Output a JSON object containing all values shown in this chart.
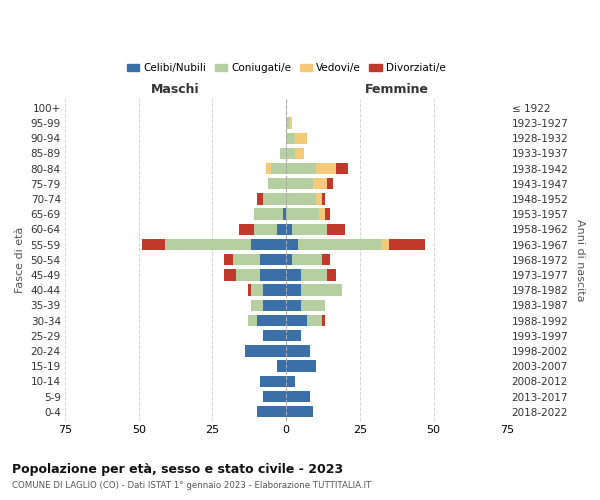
{
  "age_groups": [
    "100+",
    "95-99",
    "90-94",
    "85-89",
    "80-84",
    "75-79",
    "70-74",
    "65-69",
    "60-64",
    "55-59",
    "50-54",
    "45-49",
    "40-44",
    "35-39",
    "30-34",
    "25-29",
    "20-24",
    "15-19",
    "10-14",
    "5-9",
    "0-4"
  ],
  "birth_years": [
    "≤ 1922",
    "1923-1927",
    "1928-1932",
    "1933-1937",
    "1938-1942",
    "1943-1947",
    "1948-1952",
    "1953-1957",
    "1958-1962",
    "1963-1967",
    "1968-1972",
    "1973-1977",
    "1978-1982",
    "1983-1987",
    "1988-1992",
    "1993-1997",
    "1998-2002",
    "2003-2007",
    "2008-2012",
    "2013-2017",
    "2018-2022"
  ],
  "maschi": {
    "celibi": [
      0,
      0,
      0,
      0,
      0,
      0,
      0,
      1,
      3,
      12,
      9,
      9,
      8,
      8,
      10,
      8,
      14,
      3,
      9,
      8,
      10
    ],
    "coniugati": [
      0,
      0,
      0,
      2,
      5,
      6,
      8,
      10,
      8,
      29,
      9,
      8,
      4,
      4,
      3,
      0,
      0,
      0,
      0,
      0,
      0
    ],
    "vedovi": [
      0,
      0,
      0,
      0,
      2,
      0,
      0,
      0,
      0,
      0,
      0,
      0,
      0,
      0,
      0,
      0,
      0,
      0,
      0,
      0,
      0
    ],
    "divorziati": [
      0,
      0,
      0,
      0,
      0,
      0,
      2,
      0,
      5,
      8,
      3,
      4,
      1,
      0,
      0,
      0,
      0,
      0,
      0,
      0,
      0
    ]
  },
  "femmine": {
    "nubili": [
      0,
      0,
      0,
      0,
      0,
      0,
      0,
      0,
      2,
      4,
      2,
      5,
      5,
      5,
      7,
      5,
      8,
      10,
      3,
      8,
      9
    ],
    "coniugate": [
      0,
      1,
      3,
      3,
      10,
      9,
      10,
      11,
      12,
      28,
      10,
      9,
      14,
      8,
      5,
      0,
      0,
      0,
      0,
      0,
      0
    ],
    "vedove": [
      0,
      1,
      4,
      3,
      7,
      5,
      2,
      2,
      0,
      3,
      0,
      0,
      0,
      0,
      0,
      0,
      0,
      0,
      0,
      0,
      0
    ],
    "divorziate": [
      0,
      0,
      0,
      0,
      4,
      2,
      1,
      2,
      6,
      12,
      3,
      3,
      0,
      0,
      1,
      0,
      0,
      0,
      0,
      0,
      0
    ]
  },
  "colors": {
    "celibi": "#3a6fa8",
    "coniugati": "#b5cfa0",
    "vedovi": "#f5c97a",
    "divorziati": "#c0392b"
  },
  "xlim": 75,
  "title": "Popolazione per età, sesso e stato civile - 2023",
  "subtitle": "COMUNE DI LAGLIO (CO) - Dati ISTAT 1° gennaio 2023 - Elaborazione TUTTITALIA.IT",
  "ylabel_left": "Fasce di età",
  "ylabel_right": "Anni di nascita",
  "xlabel_left": "Maschi",
  "xlabel_right": "Femmine",
  "legend_labels": [
    "Celibi/Nubili",
    "Coniugati/e",
    "Vedovi/e",
    "Divorziati/e"
  ],
  "bg_color": "#ffffff",
  "grid_color": "#cccccc"
}
